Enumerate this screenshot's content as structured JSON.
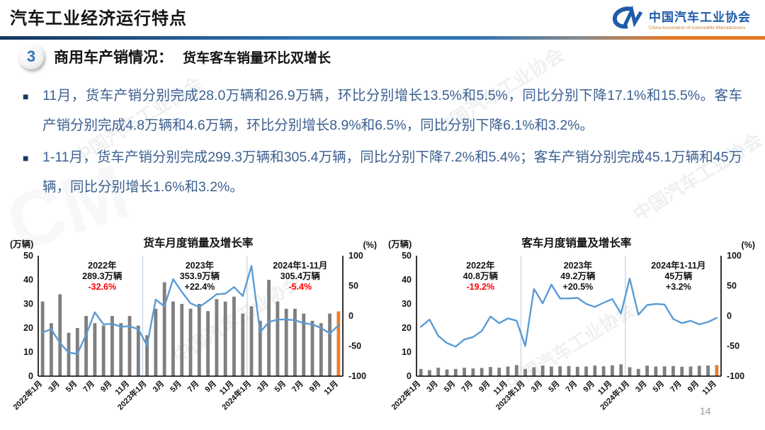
{
  "header": {
    "title": "汽车工业经济运行特点",
    "logo": {
      "name": "中国汽车工业协会",
      "subtitle": "China Association of Automobile Manufacturers"
    }
  },
  "section": {
    "number": "3",
    "heading_main": "商用车产销情况：",
    "heading_sub": "货车客车销量环比双增长"
  },
  "bullets": [
    "11月，货车产销分别完成28.0万辆和26.9万辆，环比分别增长13.5%和5.5%，同比分别下降17.1%和15.5%。客车产销分别完成4.8万辆和4.6万辆，环比分别增长8.9%和6.5%，同比分别下降6.1%和3.2%。",
    "1-11月，货车产销分别完成299.3万辆和305.4万辆，同比分别下降7.2%和5.4%；客车产销分别完成45.1万辆和45万辆，同比分别增长1.6%和3.2%。"
  ],
  "page_number": "14",
  "watermark": {
    "text": "中国汽车工业协会"
  },
  "colors": {
    "accent_blue": "#2E74B5",
    "dark_navy": "#17375E",
    "bullet_text_blue": "#3C6090",
    "bar_gray": "#7F7F7F",
    "bar_highlight_orange": "#ED7D31",
    "line_blue": "#5B9BD5",
    "negative_red": "#FF0000",
    "rule_orange": "#E87722"
  },
  "chart_data": [
    {
      "type": "bar+line",
      "title": "货车月度销量及增长率",
      "unit_left": "(万辆)",
      "unit_right": "(%)",
      "y_left": {
        "max": 50,
        "ticks": [
          50,
          40,
          30,
          20,
          10,
          0
        ]
      },
      "y_right": {
        "min": -100,
        "max": 100,
        "ticks": [
          100,
          50,
          0,
          -50,
          -100
        ]
      },
      "months": [
        "2022年1月",
        "2022年2月",
        "2022年3月",
        "2022年4月",
        "2022年5月",
        "2022年6月",
        "2022年7月",
        "2022年8月",
        "2022年9月",
        "2022年10月",
        "2022年11月",
        "2022年12月",
        "2023年1月",
        "2023年2月",
        "2023年3月",
        "2023年4月",
        "2023年5月",
        "2023年6月",
        "2023年7月",
        "2023年8月",
        "2023年9月",
        "2023年10月",
        "2023年11月",
        "2023年12月",
        "2024年1月",
        "2024年2月",
        "2024年3月",
        "2024年4月",
        "2024年5月",
        "2024年6月",
        "2024年7月",
        "2024年8月",
        "2024年9月",
        "2024年10月",
        "2024年11月"
      ],
      "x_tick_every": 2,
      "x_tick_labels": [
        "2022年1月",
        "3月",
        "5月",
        "7月",
        "9月",
        "11月",
        "2023年1月",
        "3月",
        "5月",
        "7月",
        "9月",
        "11月",
        "2024年1月",
        "3月",
        "5月",
        "7月",
        "9月",
        "11月"
      ],
      "divider_indices": [
        12,
        24
      ],
      "bars": {
        "label": "月度销量(万辆)",
        "color": "#7F7F7F",
        "last_color": "#ED7D31",
        "values": [
          31,
          22,
          34,
          18,
          20,
          25,
          22,
          21,
          25,
          22,
          25,
          21,
          17,
          28,
          39,
          31,
          30,
          28,
          30,
          27,
          32,
          31,
          33,
          26,
          29,
          23,
          40,
          31,
          28,
          28,
          26,
          23,
          22,
          26,
          26.9
        ]
      },
      "line": {
        "label": "同比增长率(%)",
        "color": "#5B9BD5",
        "values": [
          -27,
          -22,
          -45,
          -61,
          -63,
          -31,
          6,
          -14,
          -13,
          -18,
          -17,
          -22,
          -49,
          27,
          16,
          61,
          40,
          21,
          15,
          25,
          36,
          37,
          48,
          33,
          83,
          -27,
          -10,
          -6,
          -6,
          -7,
          -12,
          -14,
          -20,
          -29,
          -15.5
        ]
      },
      "annotations": [
        {
          "year": "2022年",
          "volume": "289.3万辆",
          "pct": "-32.6%",
          "pct_color": "#FF0000"
        },
        {
          "year": "2023年",
          "volume": "353.9万辆",
          "pct": "+22.4%",
          "pct_color": "#141414"
        },
        {
          "year": "2024年1-11月",
          "volume": "305.4万辆",
          "pct": "-5.4%",
          "pct_color": "#FF0000"
        }
      ]
    },
    {
      "type": "bar+line",
      "title": "客车月度销量及增长率",
      "unit_left": "(万辆)",
      "unit_right": "(%)",
      "y_left": {
        "max": 50,
        "ticks": [
          50,
          40,
          30,
          20,
          10,
          0
        ]
      },
      "y_right": {
        "min": -100,
        "max": 100,
        "ticks": [
          100,
          50,
          0,
          -50,
          -100
        ]
      },
      "months": [
        "2022年1月",
        "2022年2月",
        "2022年3月",
        "2022年4月",
        "2022年5月",
        "2022年6月",
        "2022年7月",
        "2022年8月",
        "2022年9月",
        "2022年10月",
        "2022年11月",
        "2022年12月",
        "2023年1月",
        "2023年2月",
        "2023年3月",
        "2023年4月",
        "2023年5月",
        "2023年6月",
        "2023年7月",
        "2023年8月",
        "2023年9月",
        "2023年10月",
        "2023年11月",
        "2023年12月",
        "2024年1月",
        "2024年2月",
        "2024年3月",
        "2024年4月",
        "2024年5月",
        "2024年6月",
        "2024年7月",
        "2024年8月",
        "2024年9月",
        "2024年10月",
        "2024年11月"
      ],
      "x_tick_every": 2,
      "x_tick_labels": [
        "2022年1月",
        "3月",
        "5月",
        "7月",
        "9月",
        "11月",
        "2023年1月",
        "3月",
        "5月",
        "7月",
        "9月",
        "11月",
        "2024年1月",
        "3月",
        "5月",
        "7月",
        "9月",
        "11月"
      ],
      "divider_indices": [
        12,
        24
      ],
      "bars": {
        "label": "月度销量(万辆)",
        "color": "#7F7F7F",
        "last_color": "#ED7D31",
        "values": [
          3.0,
          2.5,
          3.5,
          2.8,
          3.0,
          3.5,
          3.2,
          3.4,
          3.8,
          3.5,
          4.0,
          4.6,
          3.0,
          3.7,
          4.4,
          4.0,
          4.1,
          4.2,
          3.9,
          4.0,
          4.4,
          4.1,
          4.5,
          4.9,
          3.7,
          3.0,
          4.4,
          4.0,
          4.1,
          4.2,
          3.9,
          4.0,
          4.3,
          4.4,
          4.6
        ]
      },
      "line": {
        "label": "同比增长率(%)",
        "color": "#5B9BD5",
        "values": [
          -18,
          -6,
          -33,
          -45,
          -51,
          -39,
          -35,
          -25,
          -1,
          -12,
          -4,
          -8,
          -50,
          45,
          21,
          52,
          29,
          29,
          30,
          20,
          15,
          22,
          28,
          4,
          62,
          2,
          18,
          20,
          19,
          -5,
          -12,
          -8,
          -14,
          -10,
          -3.2
        ]
      },
      "annotations": [
        {
          "year": "2022年",
          "volume": "40.8万辆",
          "pct": "-19.2%",
          "pct_color": "#FF0000"
        },
        {
          "year": "2023年",
          "volume": "49.2万辆",
          "pct": "+20.5%",
          "pct_color": "#141414"
        },
        {
          "year": "2024年1-11月",
          "volume": "45万辆",
          "pct": "+3.2%",
          "pct_color": "#141414"
        }
      ]
    }
  ]
}
